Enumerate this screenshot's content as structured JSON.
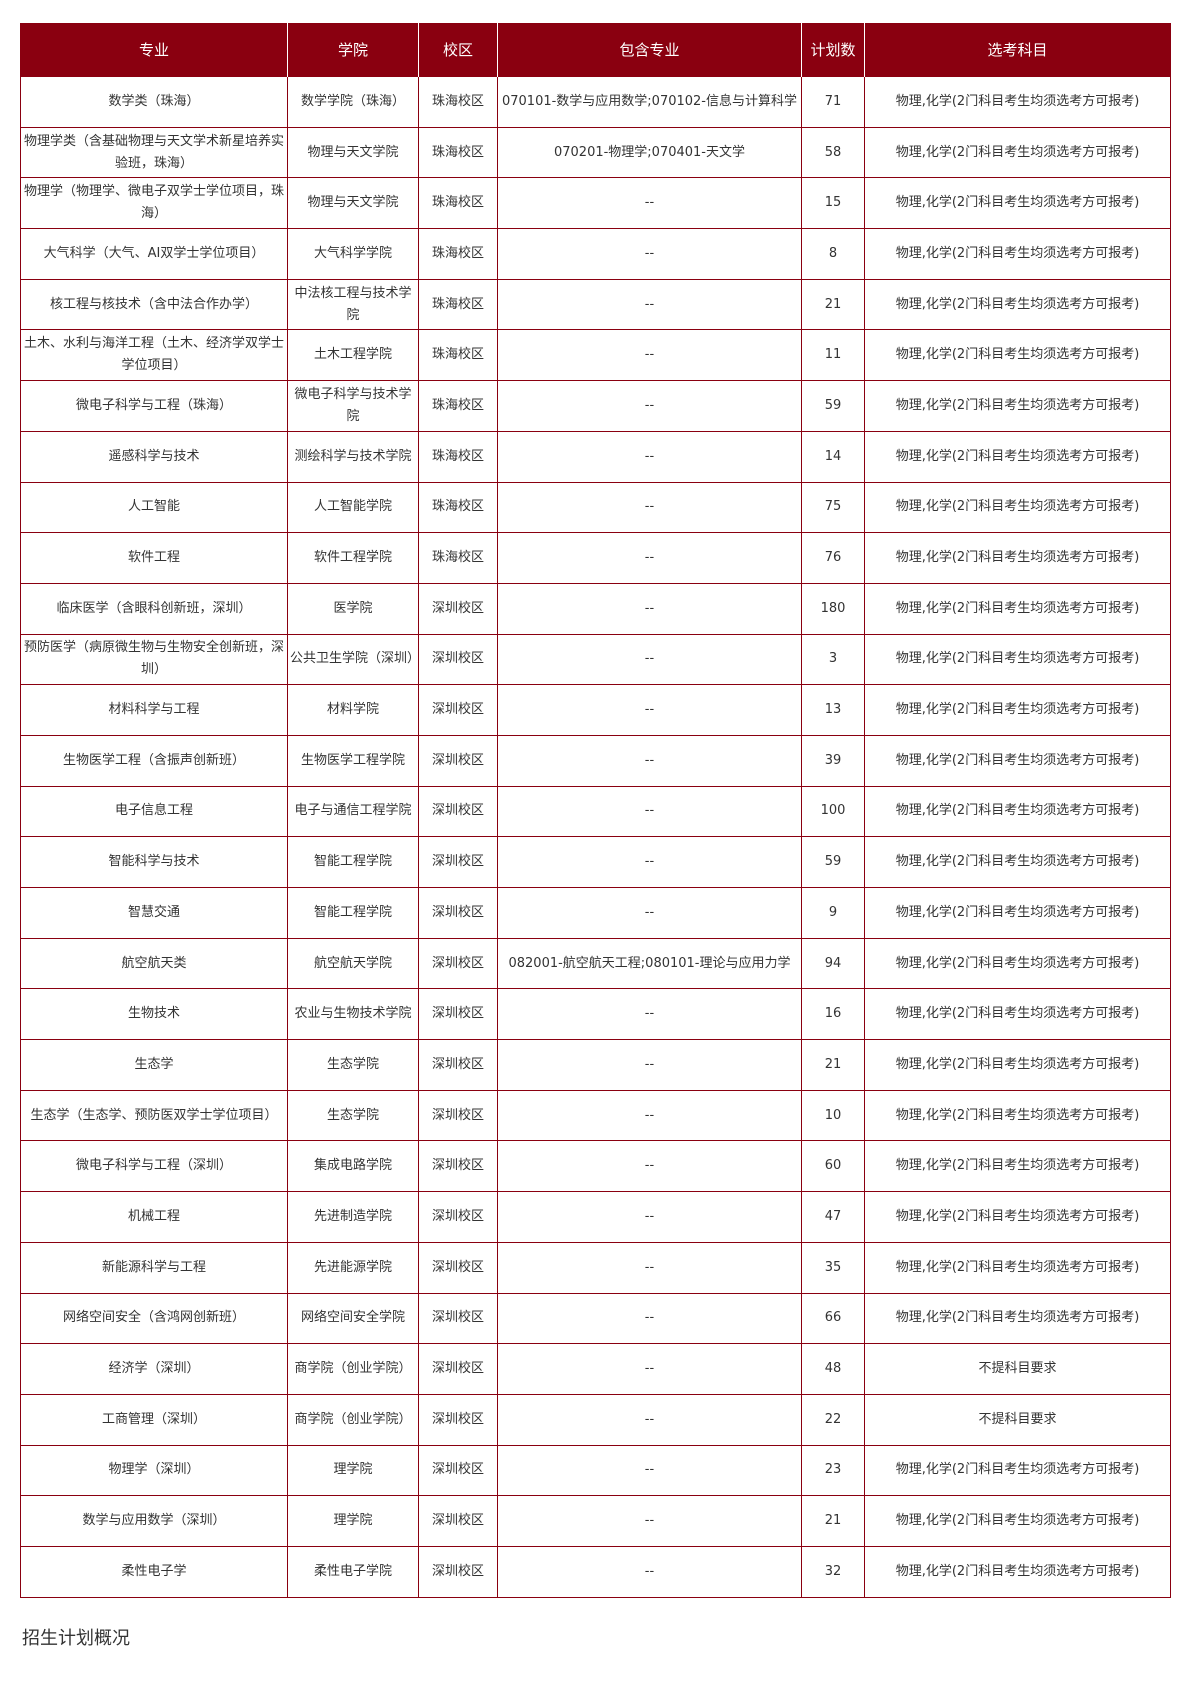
{
  "table": {
    "headers": [
      "专业",
      "学院",
      "校区",
      "包含专业",
      "计划数",
      "选考科目"
    ],
    "rows": [
      [
        "数学类（珠海）",
        "数学学院（珠海）",
        "珠海校区",
        "070101-数学与应用数学;070102-信息与计算科学",
        "71",
        "物理,化学(2门科目考生均须选考方可报考)"
      ],
      [
        "物理学类（含基础物理与天文学术新星培养实验班，珠海）",
        "物理与天文学院",
        "珠海校区",
        "070201-物理学;070401-天文学",
        "58",
        "物理,化学(2门科目考生均须选考方可报考)"
      ],
      [
        "物理学（物理学、微电子双学士学位项目，珠海）",
        "物理与天文学院",
        "珠海校区",
        "--",
        "15",
        "物理,化学(2门科目考生均须选考方可报考)"
      ],
      [
        "大气科学（大气、AI双学士学位项目）",
        "大气科学学院",
        "珠海校区",
        "--",
        "8",
        "物理,化学(2门科目考生均须选考方可报考)"
      ],
      [
        "核工程与核技术（含中法合作办学）",
        "中法核工程与技术学院",
        "珠海校区",
        "--",
        "21",
        "物理,化学(2门科目考生均须选考方可报考)"
      ],
      [
        "土木、水利与海洋工程（土木、经济学双学士学位项目）",
        "土木工程学院",
        "珠海校区",
        "--",
        "11",
        "物理,化学(2门科目考生均须选考方可报考)"
      ],
      [
        "微电子科学与工程（珠海）",
        "微电子科学与技术学院",
        "珠海校区",
        "--",
        "59",
        "物理,化学(2门科目考生均须选考方可报考)"
      ],
      [
        "遥感科学与技术",
        "测绘科学与技术学院",
        "珠海校区",
        "--",
        "14",
        "物理,化学(2门科目考生均须选考方可报考)"
      ],
      [
        "人工智能",
        "人工智能学院",
        "珠海校区",
        "--",
        "75",
        "物理,化学(2门科目考生均须选考方可报考)"
      ],
      [
        "软件工程",
        "软件工程学院",
        "珠海校区",
        "--",
        "76",
        "物理,化学(2门科目考生均须选考方可报考)"
      ],
      [
        "临床医学（含眼科创新班，深圳）",
        "医学院",
        "深圳校区",
        "--",
        "180",
        "物理,化学(2门科目考生均须选考方可报考)"
      ],
      [
        "预防医学（病原微生物与生物安全创新班，深圳）",
        "公共卫生学院（深圳）",
        "深圳校区",
        "--",
        "3",
        "物理,化学(2门科目考生均须选考方可报考)"
      ],
      [
        "材料科学与工程",
        "材料学院",
        "深圳校区",
        "--",
        "13",
        "物理,化学(2门科目考生均须选考方可报考)"
      ],
      [
        "生物医学工程（含振声创新班）",
        "生物医学工程学院",
        "深圳校区",
        "--",
        "39",
        "物理,化学(2门科目考生均须选考方可报考)"
      ],
      [
        "电子信息工程",
        "电子与通信工程学院",
        "深圳校区",
        "--",
        "100",
        "物理,化学(2门科目考生均须选考方可报考)"
      ],
      [
        "智能科学与技术",
        "智能工程学院",
        "深圳校区",
        "--",
        "59",
        "物理,化学(2门科目考生均须选考方可报考)"
      ],
      [
        "智慧交通",
        "智能工程学院",
        "深圳校区",
        "--",
        "9",
        "物理,化学(2门科目考生均须选考方可报考)"
      ],
      [
        "航空航天类",
        "航空航天学院",
        "深圳校区",
        "082001-航空航天工程;080101-理论与应用力学",
        "94",
        "物理,化学(2门科目考生均须选考方可报考)"
      ],
      [
        "生物技术",
        "农业与生物技术学院",
        "深圳校区",
        "--",
        "16",
        "物理,化学(2门科目考生均须选考方可报考)"
      ],
      [
        "生态学",
        "生态学院",
        "深圳校区",
        "--",
        "21",
        "物理,化学(2门科目考生均须选考方可报考)"
      ],
      [
        "生态学（生态学、预防医双学士学位项目）",
        "生态学院",
        "深圳校区",
        "--",
        "10",
        "物理,化学(2门科目考生均须选考方可报考)"
      ],
      [
        "微电子科学与工程（深圳）",
        "集成电路学院",
        "深圳校区",
        "--",
        "60",
        "物理,化学(2门科目考生均须选考方可报考)"
      ],
      [
        "机械工程",
        "先进制造学院",
        "深圳校区",
        "--",
        "47",
        "物理,化学(2门科目考生均须选考方可报考)"
      ],
      [
        "新能源科学与工程",
        "先进能源学院",
        "深圳校区",
        "--",
        "35",
        "物理,化学(2门科目考生均须选考方可报考)"
      ],
      [
        "网络空间安全（含鸿网创新班）",
        "网络空间安全学院",
        "深圳校区",
        "--",
        "66",
        "物理,化学(2门科目考生均须选考方可报考)"
      ],
      [
        "经济学（深圳）",
        "商学院（创业学院）",
        "深圳校区",
        "--",
        "48",
        "不提科目要求"
      ],
      [
        "工商管理（深圳）",
        "商学院（创业学院）",
        "深圳校区",
        "--",
        "22",
        "不提科目要求"
      ],
      [
        "物理学（深圳）",
        "理学院",
        "深圳校区",
        "--",
        "23",
        "物理,化学(2门科目考生均须选考方可报考)"
      ],
      [
        "数学与应用数学（深圳）",
        "理学院",
        "深圳校区",
        "--",
        "21",
        "物理,化学(2门科目考生均须选考方可报考)"
      ],
      [
        "柔性电子学",
        "柔性电子学院",
        "深圳校区",
        "--",
        "32",
        "物理,化学(2门科目考生均须选考方可报考)"
      ]
    ]
  },
  "caption": "招生计划概况",
  "colors": {
    "header_bg": "#8a0010",
    "border": "#8a0010"
  }
}
